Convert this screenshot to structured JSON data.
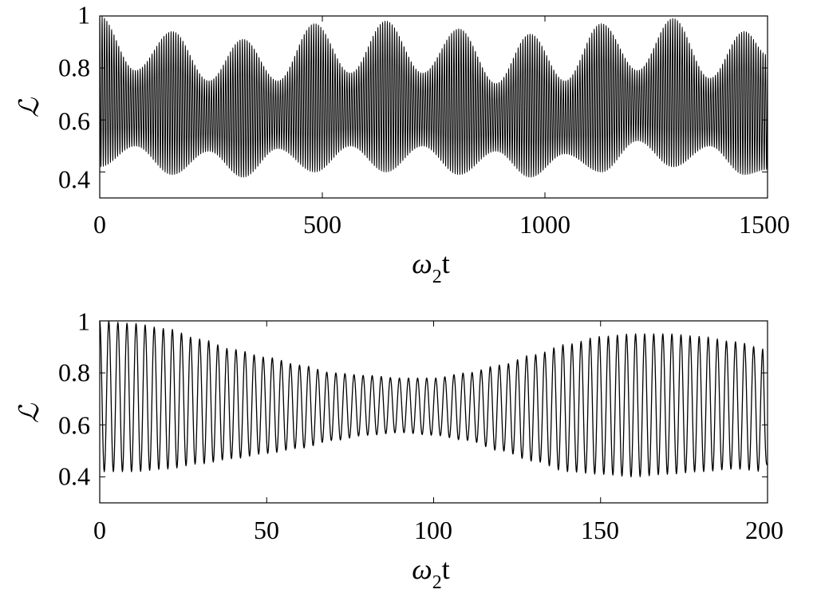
{
  "chart_data": [
    {
      "type": "line",
      "xlabel": {
        "symbol": "ω",
        "subscript": "2",
        "suffix": "t"
      },
      "ylabel": "ℒ",
      "xlim": [
        0,
        1500
      ],
      "ylim": [
        0.3,
        1.0
      ],
      "xticks": [
        0,
        500,
        1000,
        1500
      ],
      "yticks": [
        0.4,
        0.6,
        0.8,
        1.0
      ],
      "xtick_labels": [
        "0",
        "500",
        "1000",
        "1500"
      ],
      "ytick_labels": [
        "0.4",
        "0.6",
        "0.8",
        "1"
      ],
      "grid": false,
      "line_color": "#000000",
      "series": [
        {
          "fast_period": 5.34,
          "envelope_upper": {
            "x": [
              0,
              80,
              163,
              245,
              322,
              400,
              483,
              563,
              643,
              725,
              807,
              890,
              967,
              1045,
              1127,
              1208,
              1288,
              1370,
              1448,
              1500
            ],
            "y": [
              1.0,
              0.79,
              0.94,
              0.75,
              0.91,
              0.75,
              0.97,
              0.78,
              0.98,
              0.78,
              0.95,
              0.74,
              0.93,
              0.75,
              0.97,
              0.79,
              0.99,
              0.76,
              0.94,
              0.85
            ]
          },
          "envelope_lower": {
            "x": [
              0,
              80,
              163,
              245,
              322,
              400,
              483,
              563,
              643,
              725,
              807,
              890,
              967,
              1045,
              1127,
              1208,
              1288,
              1370,
              1448,
              1500
            ],
            "y": [
              0.42,
              0.5,
              0.39,
              0.48,
              0.38,
              0.49,
              0.4,
              0.5,
              0.4,
              0.5,
              0.39,
              0.48,
              0.38,
              0.47,
              0.4,
              0.52,
              0.42,
              0.5,
              0.39,
              0.41
            ]
          }
        }
      ]
    },
    {
      "type": "line",
      "xlabel": {
        "symbol": "ω",
        "subscript": "2",
        "suffix": "t"
      },
      "ylabel": "ℒ",
      "xlim": [
        0,
        200
      ],
      "ylim": [
        0.3,
        1.0
      ],
      "xticks": [
        0,
        50,
        100,
        150,
        200
      ],
      "yticks": [
        0.4,
        0.6,
        0.8,
        1.0
      ],
      "xtick_labels": [
        "0",
        "50",
        "100",
        "150",
        "200"
      ],
      "ytick_labels": [
        "0.4",
        "0.6",
        "0.8",
        "1"
      ],
      "grid": false,
      "line_color": "#000000",
      "series": [
        {
          "fast_period": 2.72,
          "start_value": 1.0,
          "end_value": 0.45,
          "envelope_upper": {
            "x": [
              0,
              10,
              20,
              30,
              40,
              50,
              60,
              70,
              80,
              90,
              100,
              110,
              120,
              130,
              140,
              150,
              160,
              170,
              180,
              190,
              200
            ],
            "y": [
              1.0,
              0.99,
              0.97,
              0.93,
              0.89,
              0.86,
              0.83,
              0.8,
              0.79,
              0.78,
              0.78,
              0.8,
              0.83,
              0.87,
              0.91,
              0.94,
              0.95,
              0.95,
              0.94,
              0.92,
              0.89
            ]
          },
          "envelope_lower": {
            "x": [
              0,
              10,
              20,
              30,
              40,
              50,
              60,
              70,
              80,
              90,
              100,
              110,
              120,
              130,
              140,
              150,
              160,
              170,
              180,
              190,
              200
            ],
            "y": [
              0.42,
              0.42,
              0.43,
              0.45,
              0.47,
              0.49,
              0.51,
              0.54,
              0.56,
              0.57,
              0.56,
              0.54,
              0.5,
              0.46,
              0.42,
              0.41,
              0.4,
              0.41,
              0.42,
              0.43,
              0.42
            ]
          }
        }
      ]
    }
  ]
}
